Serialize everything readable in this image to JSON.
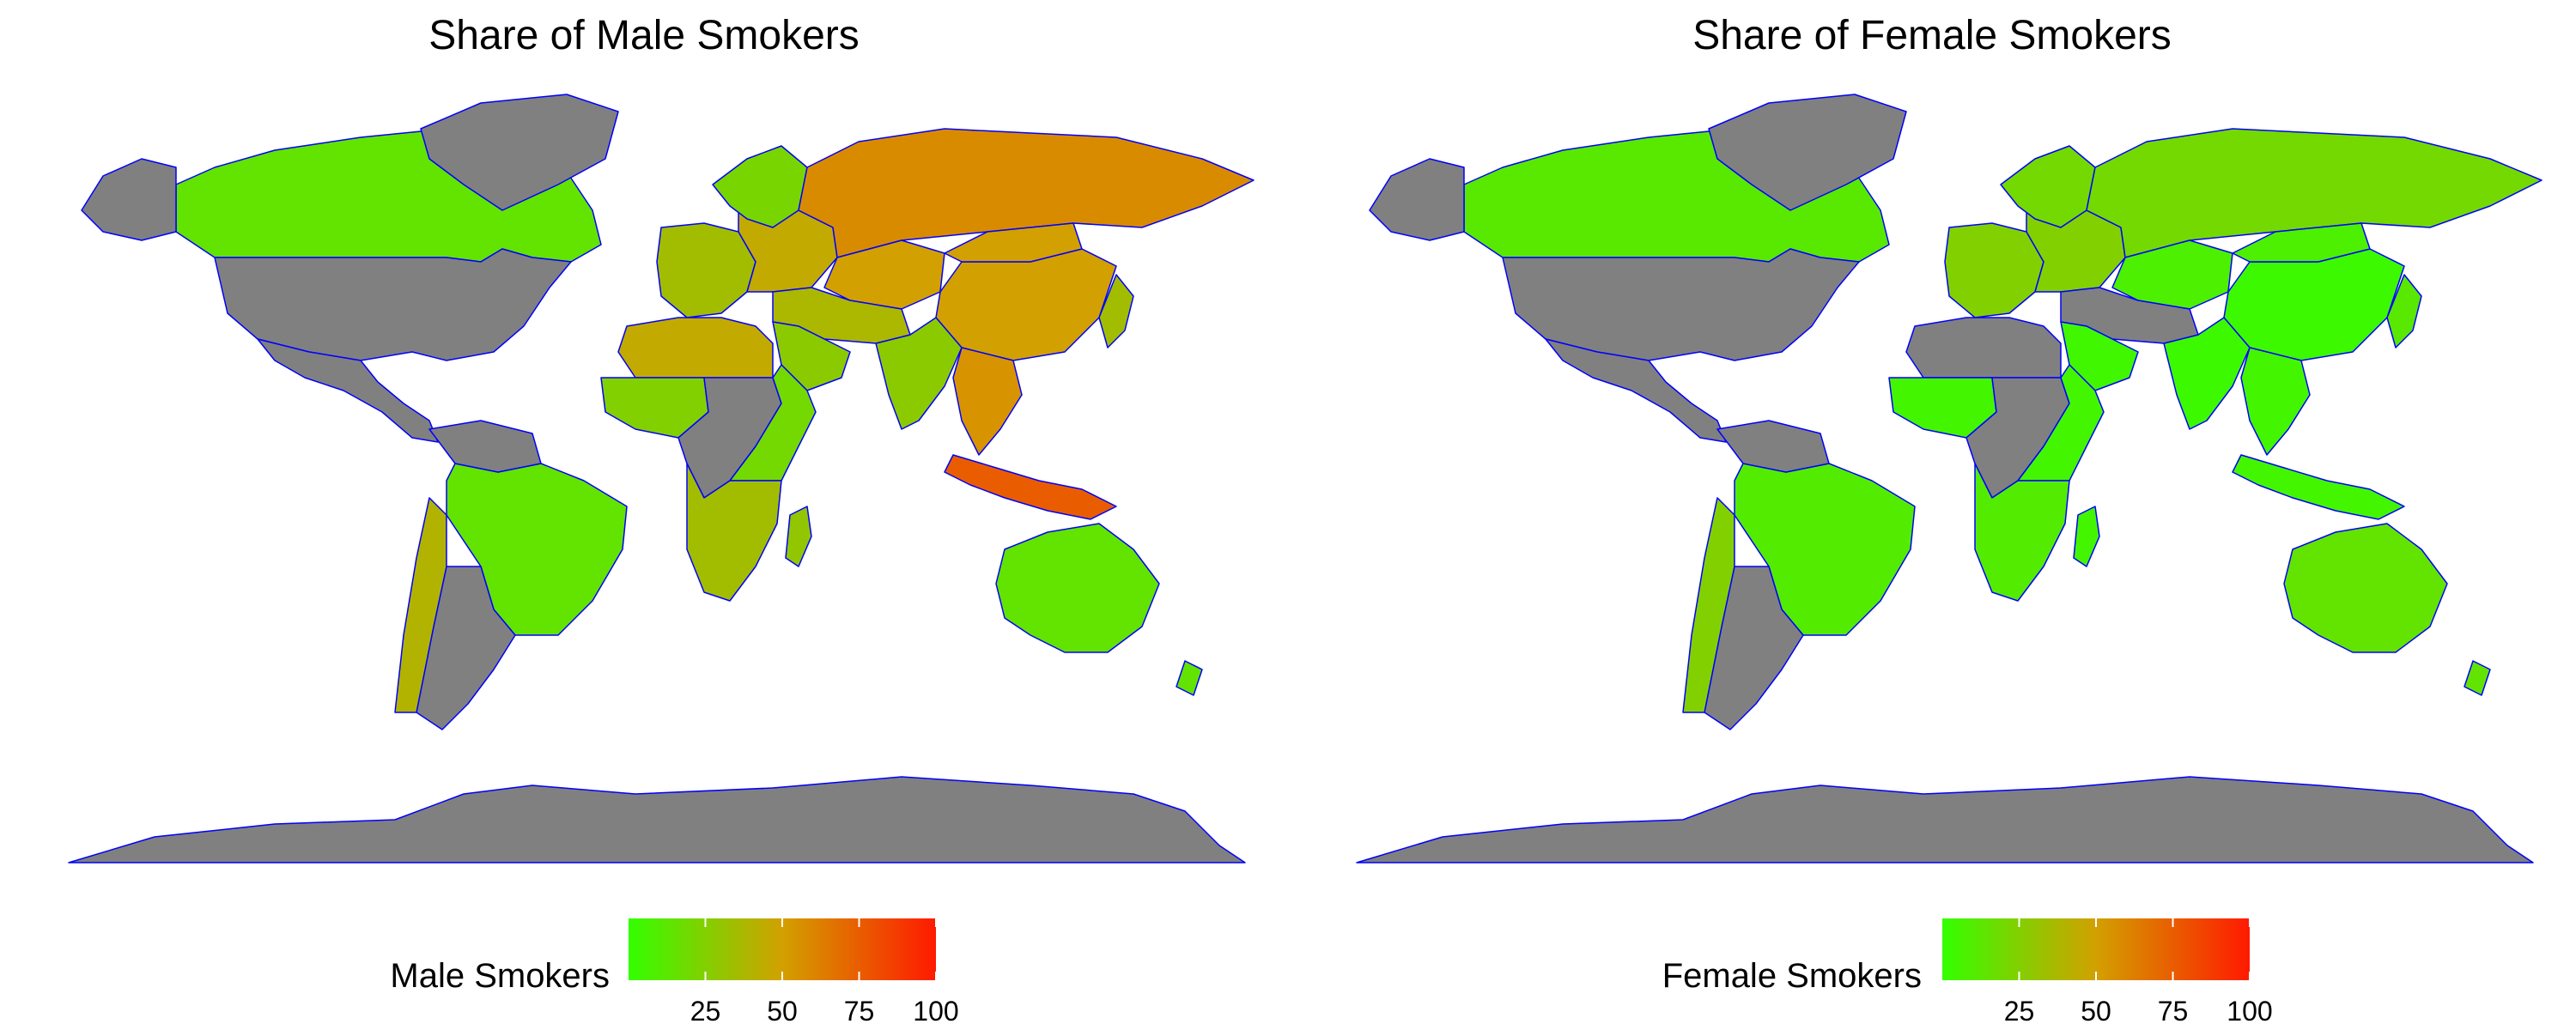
{
  "colors": {
    "low": "#33ff00",
    "mid": "#d2a000",
    "high": "#ff1a00",
    "no_data": "#808080",
    "border": "#0000ff",
    "background": "#ffffff"
  },
  "maps": [
    {
      "title": "Share of Male Smokers",
      "legend": {
        "title": "Male Smokers",
        "range": [
          0,
          100
        ],
        "ticks": [
          "25",
          "50",
          "75",
          "100"
        ]
      },
      "regions": [
        {
          "region": "Canada",
          "value": 15
        },
        {
          "region": "United States",
          "value": null
        },
        {
          "region": "Mexico & Central America",
          "value": null
        },
        {
          "region": "Greenland",
          "value": null
        },
        {
          "region": "Alaska",
          "value": null
        },
        {
          "region": "Brazil",
          "value": 15
        },
        {
          "region": "Venezuela & Guyanas",
          "value": null
        },
        {
          "region": "Argentina",
          "value": null
        },
        {
          "region": "Chile",
          "value": 40
        },
        {
          "region": "Western Europe",
          "value": 35
        },
        {
          "region": "Eastern Europe",
          "value": 45
        },
        {
          "region": "Scandinavia",
          "value": 22
        },
        {
          "region": "Russia",
          "value": 58
        },
        {
          "region": "Kazakhstan & Central Asia",
          "value": 50
        },
        {
          "region": "China",
          "value": 50
        },
        {
          "region": "Mongolia",
          "value": 50
        },
        {
          "region": "India",
          "value": 28
        },
        {
          "region": "Middle East",
          "value": 38
        },
        {
          "region": "Arabian Peninsula",
          "value": 28
        },
        {
          "region": "Southeast Asia",
          "value": 55
        },
        {
          "region": "Indonesia",
          "value": 75
        },
        {
          "region": "Japan",
          "value": 35
        },
        {
          "region": "North Africa",
          "value": 45
        },
        {
          "region": "West Africa",
          "value": 25
        },
        {
          "region": "Central Africa",
          "value": null
        },
        {
          "region": "East Africa",
          "value": 20
        },
        {
          "region": "Southern Africa",
          "value": 35
        },
        {
          "region": "Madagascar",
          "value": 30
        },
        {
          "region": "Australia",
          "value": 15
        },
        {
          "region": "New Zealand",
          "value": 15
        },
        {
          "region": "Antarctica",
          "value": null
        }
      ]
    },
    {
      "title": "Share of Female Smokers",
      "legend": {
        "title": "Female Smokers",
        "range": [
          0,
          100
        ],
        "ticks": [
          "25",
          "50",
          "75",
          "100"
        ]
      },
      "regions": [
        {
          "region": "Canada",
          "value": 12
        },
        {
          "region": "United States",
          "value": null
        },
        {
          "region": "Mexico & Central America",
          "value": null
        },
        {
          "region": "Greenland",
          "value": null
        },
        {
          "region": "Alaska",
          "value": null
        },
        {
          "region": "Brazil",
          "value": 10
        },
        {
          "region": "Venezuela & Guyanas",
          "value": null
        },
        {
          "region": "Argentina",
          "value": null
        },
        {
          "region": "Chile",
          "value": 25
        },
        {
          "region": "Western Europe",
          "value": 25
        },
        {
          "region": "Eastern Europe",
          "value": 25
        },
        {
          "region": "Scandinavia",
          "value": 20
        },
        {
          "region": "Russia",
          "value": 20
        },
        {
          "region": "Kazakhstan & Central Asia",
          "value": 8
        },
        {
          "region": "China",
          "value": 3
        },
        {
          "region": "Mongolia",
          "value": 8
        },
        {
          "region": "India",
          "value": 3
        },
        {
          "region": "Middle East",
          "value": null
        },
        {
          "region": "Arabian Peninsula",
          "value": 4
        },
        {
          "region": "Southeast Asia",
          "value": 5
        },
        {
          "region": "Indonesia",
          "value": 5
        },
        {
          "region": "Japan",
          "value": 12
        },
        {
          "region": "North Africa",
          "value": null
        },
        {
          "region": "West Africa",
          "value": 5
        },
        {
          "region": "Central Africa",
          "value": null
        },
        {
          "region": "East Africa",
          "value": 5
        },
        {
          "region": "Southern Africa",
          "value": 10
        },
        {
          "region": "Madagascar",
          "value": 5
        },
        {
          "region": "Australia",
          "value": 15
        },
        {
          "region": "New Zealand",
          "value": 15
        },
        {
          "region": "Antarctica",
          "value": null
        }
      ]
    }
  ]
}
